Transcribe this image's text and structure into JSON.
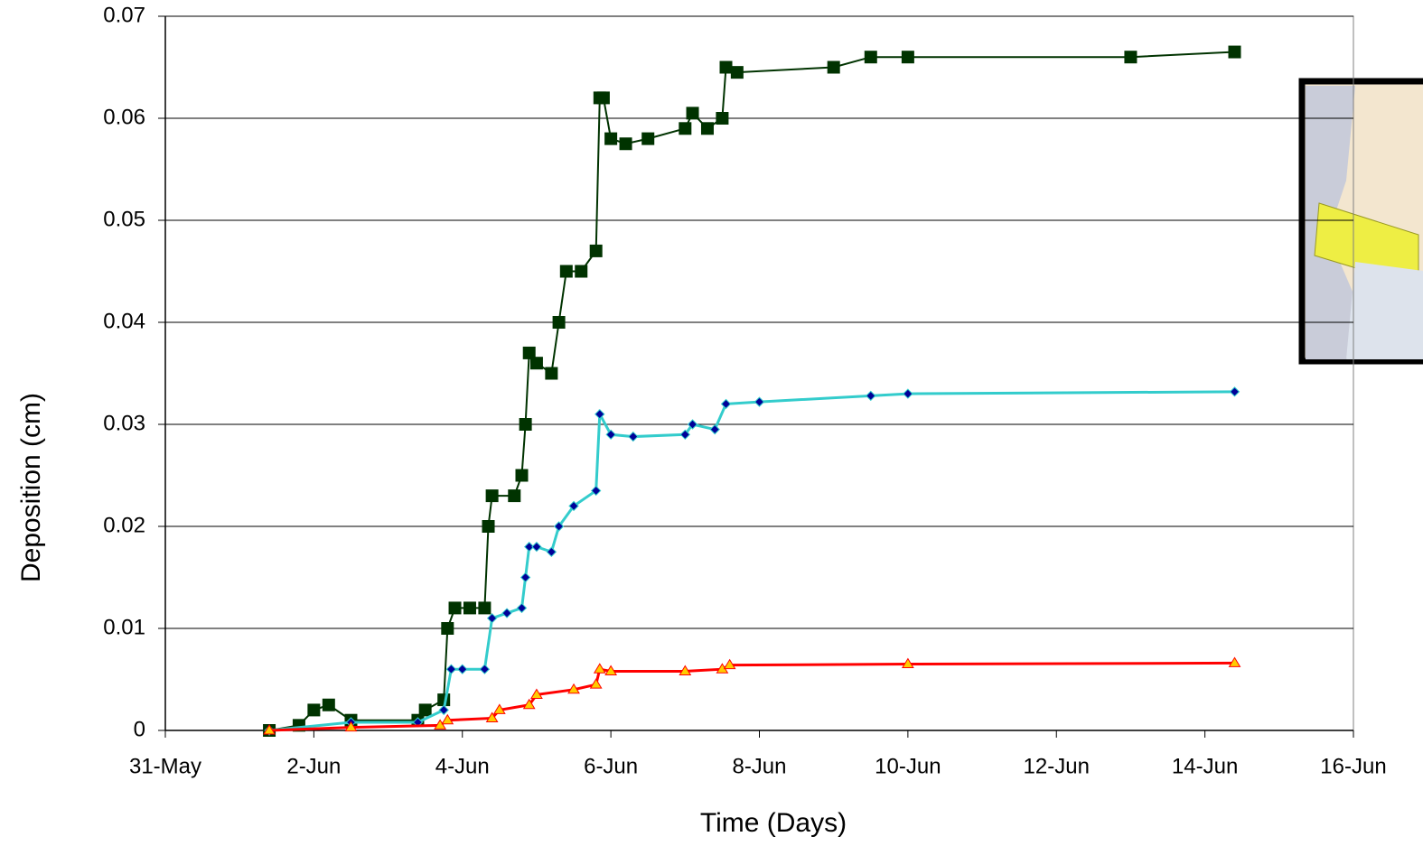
{
  "chart_data": {
    "type": "line",
    "y_label": "Deposition (cm)",
    "x_label": "Time (Days)",
    "xlim": [
      0,
      16
    ],
    "xticks": [
      {
        "value": 0,
        "label": "31-May"
      },
      {
        "value": 2,
        "label": "2-Jun"
      },
      {
        "value": 4,
        "label": "4-Jun"
      },
      {
        "value": 6,
        "label": "6-Jun"
      },
      {
        "value": 8,
        "label": "8-Jun"
      },
      {
        "value": 10,
        "label": "10-Jun"
      },
      {
        "value": 12,
        "label": "12-Jun"
      },
      {
        "value": 14,
        "label": "14-Jun"
      },
      {
        "value": 16,
        "label": "16-Jun"
      }
    ],
    "ylim": [
      0,
      0.07
    ],
    "yticks": [
      0,
      0.01,
      0.02,
      0.03,
      0.04,
      0.05,
      0.06,
      0.07
    ],
    "grid": true,
    "series": [
      {
        "color": "#003300",
        "marker": "square",
        "x": [
          1.4,
          1.8,
          2.0,
          2.2,
          2.5,
          3.4,
          3.5,
          3.75,
          3.8,
          3.9,
          4.1,
          4.3,
          4.35,
          4.4,
          4.7,
          4.8,
          4.85,
          4.9,
          5.0,
          5.2,
          5.3,
          5.4,
          5.6,
          5.8,
          5.85,
          5.9,
          6.0,
          6.2,
          6.5,
          7.0,
          7.1,
          7.3,
          7.5,
          7.55,
          7.7,
          9.0,
          9.5,
          10.0,
          13.0,
          14.4
        ],
        "values": [
          0,
          0.0005,
          0.002,
          0.0025,
          0.001,
          0.001,
          0.002,
          0.003,
          0.01,
          0.012,
          0.012,
          0.012,
          0.02,
          0.023,
          0.023,
          0.025,
          0.03,
          0.037,
          0.036,
          0.035,
          0.04,
          0.045,
          0.045,
          0.047,
          0.062,
          0.062,
          0.058,
          0.0575,
          0.058,
          0.059,
          0.0605,
          0.059,
          0.06,
          0.065,
          0.0645,
          0.065,
          0.066,
          0.066,
          0.066,
          0.0665
        ]
      },
      {
        "color": "#33cccc",
        "marker": "diamond",
        "marker_color": "#000099",
        "x": [
          1.4,
          2.5,
          3.4,
          3.75,
          3.85,
          4.0,
          4.3,
          4.4,
          4.6,
          4.8,
          4.85,
          4.9,
          5.0,
          5.2,
          5.3,
          5.5,
          5.8,
          5.85,
          6.0,
          6.3,
          7.0,
          7.1,
          7.4,
          7.55,
          8.0,
          9.5,
          10.0,
          14.4
        ],
        "values": [
          0,
          0.0008,
          0.0008,
          0.002,
          0.006,
          0.006,
          0.006,
          0.011,
          0.0115,
          0.012,
          0.015,
          0.018,
          0.018,
          0.0175,
          0.02,
          0.022,
          0.0235,
          0.031,
          0.029,
          0.0288,
          0.029,
          0.03,
          0.0295,
          0.032,
          0.0322,
          0.0328,
          0.033,
          0.0332
        ]
      },
      {
        "color": "#ff0000",
        "marker": "triangle",
        "marker_color": "#ffcc00",
        "x": [
          1.4,
          2.5,
          3.7,
          3.8,
          4.4,
          4.5,
          4.9,
          5.0,
          5.5,
          5.8,
          5.85,
          6.0,
          7.0,
          7.5,
          7.6,
          10.0,
          14.4
        ],
        "values": [
          0,
          0.0003,
          0.0005,
          0.001,
          0.0012,
          0.002,
          0.0025,
          0.0035,
          0.004,
          0.0045,
          0.006,
          0.0058,
          0.0058,
          0.006,
          0.0064,
          0.0065,
          0.0066
        ]
      }
    ]
  }
}
